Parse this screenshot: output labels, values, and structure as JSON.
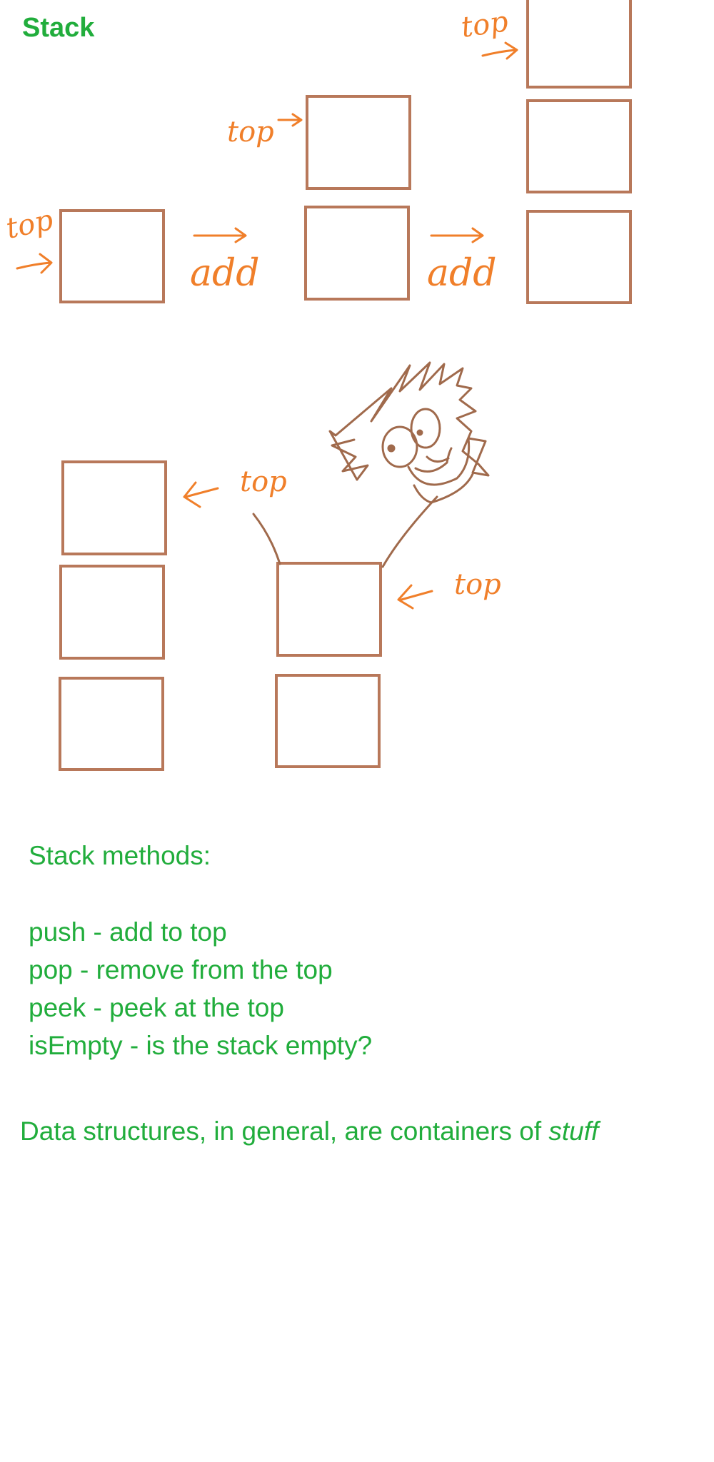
{
  "title": "Stack",
  "labels": {
    "top": "top",
    "add": "add"
  },
  "methods_heading": "Stack methods:",
  "methods": [
    "push - add to top",
    "pop - remove from the top",
    "peek - peek at the top",
    "isEmpty - is the stack empty?"
  ],
  "footer": {
    "text": "Data structures, in general, are containers of ",
    "emphasis": "stuff"
  },
  "colors": {
    "box": "#b8785a",
    "ink": "#f07f2a",
    "text": "#21ad3c",
    "doodle": "#a06a4c"
  }
}
